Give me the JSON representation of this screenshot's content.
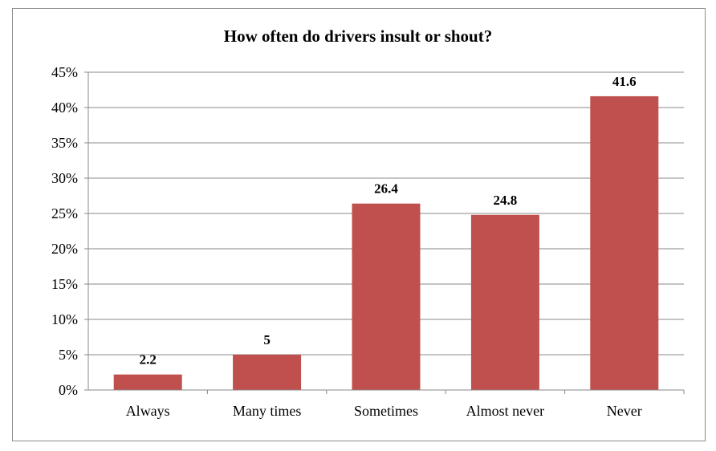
{
  "chart_data": {
    "type": "bar",
    "title": "How often do drivers insult or shout?",
    "xlabel": "",
    "ylabel": "",
    "categories": [
      "Always",
      "Many times",
      "Sometimes",
      "Almost never",
      "Never"
    ],
    "values": [
      2.2,
      5,
      26.4,
      24.8,
      41.6
    ],
    "data_labels": [
      "2.2",
      "5",
      "26.4",
      "24.8",
      "41.6"
    ],
    "ylim": [
      0,
      45
    ],
    "y_ticks": [
      0,
      5,
      10,
      15,
      20,
      25,
      30,
      35,
      40,
      45
    ],
    "y_tick_labels": [
      "0%",
      "5%",
      "10%",
      "15%",
      "20%",
      "25%",
      "30%",
      "35%",
      "40%",
      "45%"
    ],
    "grid": true,
    "legend": "none",
    "bar_color": "#C0504D"
  }
}
